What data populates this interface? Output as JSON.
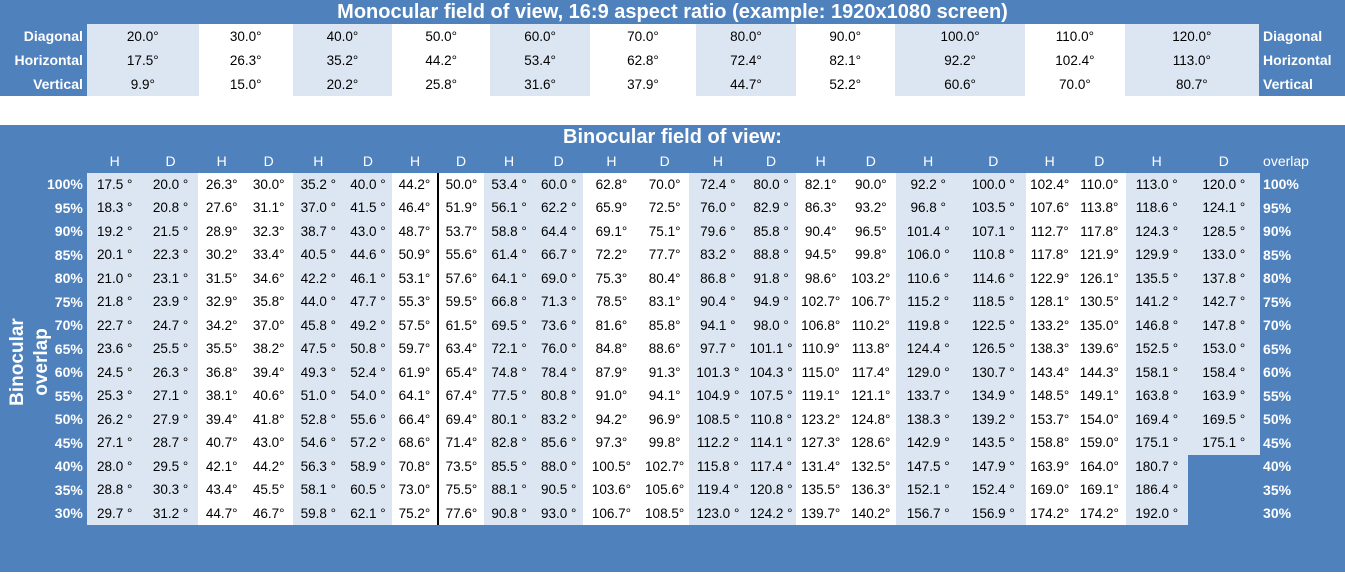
{
  "monocular": {
    "title": "Monocular field of view, 16:9 aspect ratio (example: 1920x1080 screen)",
    "rows": [
      {
        "label": "Diagonal",
        "values": [
          "20.0°",
          "30.0°",
          "40.0°",
          "50.0°",
          "60.0°",
          "70.0°",
          "80.0°",
          "90.0°",
          "100.0°",
          "110.0°",
          "120.0°"
        ]
      },
      {
        "label": "Horizontal",
        "values": [
          "17.5°",
          "26.3°",
          "35.2°",
          "44.2°",
          "53.4°",
          "62.8°",
          "72.4°",
          "82.1°",
          "92.2°",
          "102.4°",
          "113.0°"
        ]
      },
      {
        "label": "Vertical",
        "values": [
          "9.9°",
          "15.0°",
          "20.2°",
          "25.8°",
          "31.6°",
          "37.9°",
          "44.7°",
          "52.2°",
          "60.6°",
          "70.0°",
          "80.7°"
        ]
      }
    ]
  },
  "binocular": {
    "title": "Binocular field of view:",
    "side_label": "Binocular overlap",
    "overlap_header": "overlap",
    "columns": [
      "H",
      "D",
      "H",
      "D",
      "H",
      "D",
      "H",
      "D",
      "H",
      "D",
      "H",
      "D",
      "H",
      "D",
      "H",
      "D",
      "H",
      "D",
      "H",
      "D",
      "H",
      "D"
    ],
    "rows": [
      {
        "overlap": "100%",
        "cells": [
          "17.5 °",
          "20.0 °",
          "26.3°",
          "30.0°",
          "35.2 °",
          "40.0 °",
          "44.2°",
          "50.0°",
          "53.4 °",
          "60.0 °",
          "62.8°",
          "70.0°",
          "72.4 °",
          "80.0 °",
          "82.1°",
          "90.0°",
          "92.2 °",
          "100.0 °",
          "102.4°",
          "110.0°",
          "113.0 °",
          "120.0 °"
        ]
      },
      {
        "overlap": "95%",
        "cells": [
          "18.3 °",
          "20.8 °",
          "27.6°",
          "31.1°",
          "37.0 °",
          "41.5 °",
          "46.4°",
          "51.9°",
          "56.1 °",
          "62.2 °",
          "65.9°",
          "72.5°",
          "76.0 °",
          "82.9 °",
          "86.3°",
          "93.2°",
          "96.8 °",
          "103.5 °",
          "107.6°",
          "113.8°",
          "118.6 °",
          "124.1 °"
        ]
      },
      {
        "overlap": "90%",
        "cells": [
          "19.2 °",
          "21.5 °",
          "28.9°",
          "32.3°",
          "38.7 °",
          "43.0 °",
          "48.7°",
          "53.7°",
          "58.8 °",
          "64.4 °",
          "69.1°",
          "75.1°",
          "79.6 °",
          "85.8 °",
          "90.4°",
          "96.5°",
          "101.4 °",
          "107.1 °",
          "112.7°",
          "117.8°",
          "124.3 °",
          "128.5 °"
        ]
      },
      {
        "overlap": "85%",
        "cells": [
          "20.1 °",
          "22.3 °",
          "30.2°",
          "33.4°",
          "40.5 °",
          "44.6 °",
          "50.9°",
          "55.6°",
          "61.4 °",
          "66.7 °",
          "72.2°",
          "77.7°",
          "83.2 °",
          "88.8 °",
          "94.5°",
          "99.8°",
          "106.0 °",
          "110.8 °",
          "117.8°",
          "121.9°",
          "129.9 °",
          "133.0 °"
        ]
      },
      {
        "overlap": "80%",
        "cells": [
          "21.0 °",
          "23.1 °",
          "31.5°",
          "34.6°",
          "42.2 °",
          "46.1 °",
          "53.1°",
          "57.6°",
          "64.1 °",
          "69.0 °",
          "75.3°",
          "80.4°",
          "86.8 °",
          "91.8 °",
          "98.6°",
          "103.2°",
          "110.6 °",
          "114.6 °",
          "122.9°",
          "126.1°",
          "135.5 °",
          "137.8 °"
        ]
      },
      {
        "overlap": "75%",
        "cells": [
          "21.8 °",
          "23.9 °",
          "32.9°",
          "35.8°",
          "44.0 °",
          "47.7 °",
          "55.3°",
          "59.5°",
          "66.8 °",
          "71.3 °",
          "78.5°",
          "83.1°",
          "90.4 °",
          "94.9 °",
          "102.7°",
          "106.7°",
          "115.2 °",
          "118.5 °",
          "128.1°",
          "130.5°",
          "141.2 °",
          "142.7 °"
        ]
      },
      {
        "overlap": "70%",
        "cells": [
          "22.7 °",
          "24.7 °",
          "34.2°",
          "37.0°",
          "45.8 °",
          "49.2 °",
          "57.5°",
          "61.5°",
          "69.5 °",
          "73.6 °",
          "81.6°",
          "85.8°",
          "94.1 °",
          "98.0 °",
          "106.8°",
          "110.2°",
          "119.8 °",
          "122.5 °",
          "133.2°",
          "135.0°",
          "146.8 °",
          "147.8 °"
        ]
      },
      {
        "overlap": "65%",
        "cells": [
          "23.6 °",
          "25.5 °",
          "35.5°",
          "38.2°",
          "47.5 °",
          "50.8 °",
          "59.7°",
          "63.4°",
          "72.1 °",
          "76.0 °",
          "84.8°",
          "88.6°",
          "97.7 °",
          "101.1 °",
          "110.9°",
          "113.8°",
          "124.4 °",
          "126.5 °",
          "138.3°",
          "139.6°",
          "152.5 °",
          "153.0 °"
        ]
      },
      {
        "overlap": "60%",
        "cells": [
          "24.5 °",
          "26.3 °",
          "36.8°",
          "39.4°",
          "49.3 °",
          "52.4 °",
          "61.9°",
          "65.4°",
          "74.8 °",
          "78.4 °",
          "87.9°",
          "91.3°",
          "101.3 °",
          "104.3 °",
          "115.0°",
          "117.4°",
          "129.0 °",
          "130.7 °",
          "143.4°",
          "144.3°",
          "158.1 °",
          "158.4 °"
        ]
      },
      {
        "overlap": "55%",
        "cells": [
          "25.3 °",
          "27.1 °",
          "38.1°",
          "40.6°",
          "51.0 °",
          "54.0 °",
          "64.1°",
          "67.4°",
          "77.5 °",
          "80.8 °",
          "91.0°",
          "94.1°",
          "104.9 °",
          "107.5 °",
          "119.1°",
          "121.1°",
          "133.7 °",
          "134.9 °",
          "148.5°",
          "149.1°",
          "163.8 °",
          "163.9 °"
        ]
      },
      {
        "overlap": "50%",
        "cells": [
          "26.2 °",
          "27.9 °",
          "39.4°",
          "41.8°",
          "52.8 °",
          "55.6 °",
          "66.4°",
          "69.4°",
          "80.1 °",
          "83.2 °",
          "94.2°",
          "96.9°",
          "108.5 °",
          "110.8 °",
          "123.2°",
          "124.8°",
          "138.3 °",
          "139.2 °",
          "153.7°",
          "154.0°",
          "169.4 °",
          "169.5 °"
        ]
      },
      {
        "overlap": "45%",
        "cells": [
          "27.1 °",
          "28.7 °",
          "40.7°",
          "43.0°",
          "54.6 °",
          "57.2 °",
          "68.6°",
          "71.4°",
          "82.8 °",
          "85.6 °",
          "97.3°",
          "99.8°",
          "112.2 °",
          "114.1 °",
          "127.3°",
          "128.6°",
          "142.9 °",
          "143.5 °",
          "158.8°",
          "159.0°",
          "175.1 °",
          "175.1 °"
        ]
      },
      {
        "overlap": "40%",
        "cells": [
          "28.0 °",
          "29.5 °",
          "42.1°",
          "44.2°",
          "56.3 °",
          "58.9 °",
          "70.8°",
          "73.5°",
          "85.5 °",
          "88.0 °",
          "100.5°",
          "102.7°",
          "115.8 °",
          "117.4 °",
          "131.4°",
          "132.5°",
          "147.5 °",
          "147.9 °",
          "163.9°",
          "164.0°",
          "180.7 °",
          ""
        ]
      },
      {
        "overlap": "35%",
        "cells": [
          "28.8 °",
          "30.3 °",
          "43.4°",
          "45.5°",
          "58.1 °",
          "60.5 °",
          "73.0°",
          "75.5°",
          "88.1 °",
          "90.5 °",
          "103.6°",
          "105.6°",
          "119.4 °",
          "120.8 °",
          "135.5°",
          "136.3°",
          "152.1 °",
          "152.4 °",
          "169.0°",
          "169.1°",
          "186.4 °",
          ""
        ]
      },
      {
        "overlap": "30%",
        "cells": [
          "29.7 °",
          "31.2 °",
          "44.7°",
          "46.7°",
          "59.8 °",
          "62.1 °",
          "75.2°",
          "77.6°",
          "90.8 °",
          "93.0 °",
          "106.7°",
          "108.5°",
          "123.0 °",
          "124.2 °",
          "139.7°",
          "140.2°",
          "156.7 °",
          "156.9 °",
          "174.2°",
          "174.2°",
          "192.0 °",
          ""
        ]
      }
    ]
  }
}
